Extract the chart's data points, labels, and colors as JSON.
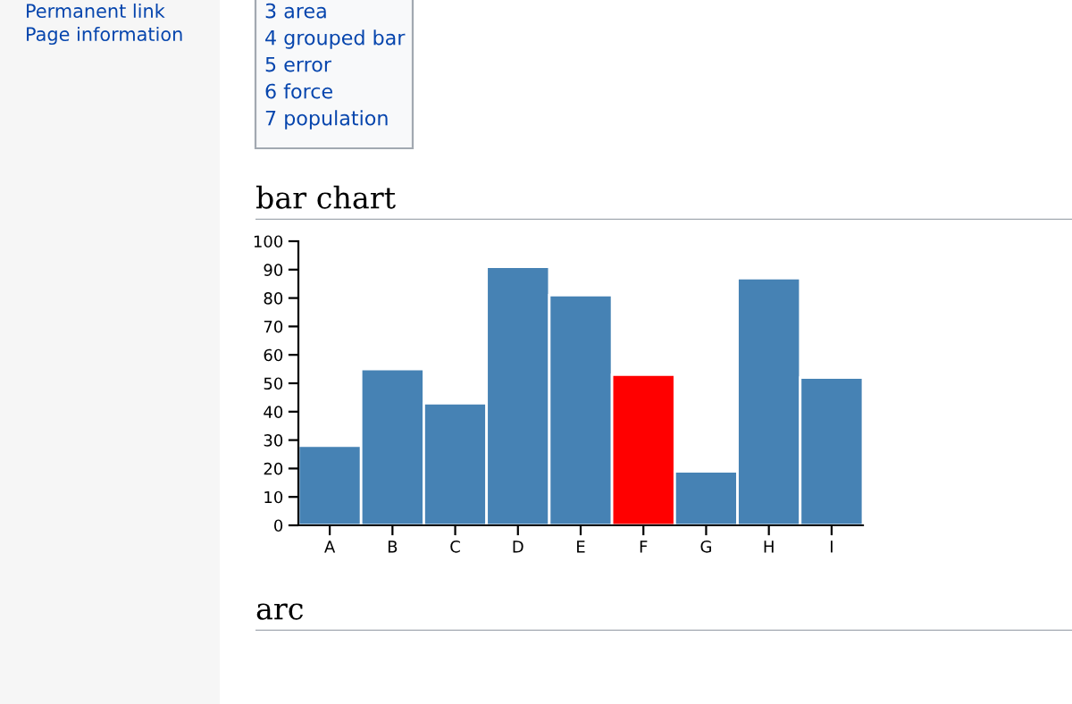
{
  "chart_data": {
    "type": "bar",
    "title": "bar chart",
    "categories": [
      "A",
      "B",
      "C",
      "D",
      "E",
      "F",
      "G",
      "H",
      "I"
    ],
    "values": [
      28,
      55,
      43,
      91,
      81,
      53,
      19,
      87,
      52
    ],
    "colors": [
      "#4682b4",
      "#4682b4",
      "#4682b4",
      "#4682b4",
      "#4682b4",
      "#ff0000",
      "#4682b4",
      "#4682b4",
      "#4682b4"
    ],
    "ylim": [
      0,
      100
    ],
    "yticks": [
      0,
      10,
      20,
      30,
      40,
      50,
      60,
      70,
      80,
      90,
      100
    ],
    "grid": false,
    "annotations": [
      "Permanent link",
      "Page information",
      "3 area",
      "4 grouped bar",
      "5 error",
      "6 force",
      "7 population",
      "arc"
    ]
  }
}
